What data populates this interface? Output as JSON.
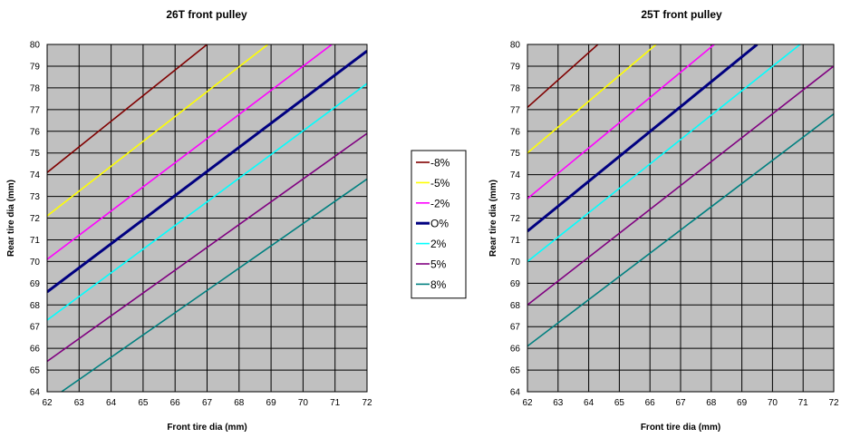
{
  "chart_data": [
    {
      "type": "line",
      "title": "26T front pulley",
      "xlabel": "Front tire dia (mm)",
      "ylabel": "Rear tire dia (mm)",
      "xlim": [
        62,
        72
      ],
      "ylim": [
        64,
        80
      ],
      "xticks": [
        "62",
        "63",
        "64",
        "65",
        "66",
        "67",
        "68",
        "69",
        "70",
        "71",
        "72"
      ],
      "yticks": [
        "64",
        "65",
        "66",
        "67",
        "68",
        "69",
        "70",
        "71",
        "72",
        "73",
        "74",
        "75",
        "76",
        "77",
        "78",
        "79",
        "80"
      ],
      "grid": true,
      "plot_background": "#c0c0c0",
      "series": [
        {
          "name": "-8%",
          "color": "#800000",
          "points": [
            [
              62,
              74.1
            ],
            [
              67,
              80.0
            ]
          ]
        },
        {
          "name": "-5%",
          "color": "#ffff00",
          "points": [
            [
              62,
              72.1
            ],
            [
              68.9,
              80.0
            ]
          ]
        },
        {
          "name": "-2%",
          "color": "#ff00ff",
          "points": [
            [
              62,
              70.1
            ],
            [
              70.9,
              80.0
            ]
          ]
        },
        {
          "name": "O%",
          "color": "#000080",
          "points": [
            [
              62,
              68.6
            ],
            [
              72,
              79.7
            ]
          ],
          "bold": true
        },
        {
          "name": "2%",
          "color": "#00ffff",
          "points": [
            [
              62,
              67.3
            ],
            [
              72,
              78.2
            ]
          ]
        },
        {
          "name": "5%",
          "color": "#800080",
          "points": [
            [
              62,
              65.4
            ],
            [
              72,
              75.9
            ]
          ]
        },
        {
          "name": "8%",
          "color": "#008080",
          "points": [
            [
              62.45,
              64.0
            ],
            [
              72,
              73.8
            ]
          ]
        }
      ]
    },
    {
      "type": "line",
      "title": "25T front pulley",
      "xlabel": "Front tire dia (mm)",
      "ylabel": "Rear tire dia (mm)",
      "xlim": [
        62,
        72
      ],
      "ylim": [
        64,
        80
      ],
      "xticks": [
        "62",
        "63",
        "64",
        "65",
        "66",
        "67",
        "68",
        "69",
        "70",
        "71",
        "72"
      ],
      "yticks": [
        "64",
        "65",
        "66",
        "67",
        "68",
        "69",
        "70",
        "71",
        "72",
        "73",
        "74",
        "75",
        "76",
        "77",
        "78",
        "79",
        "80"
      ],
      "grid": true,
      "plot_background": "#c0c0c0",
      "series": [
        {
          "name": "-8%",
          "color": "#800000",
          "points": [
            [
              62,
              77.1
            ],
            [
              64.3,
              80.0
            ]
          ]
        },
        {
          "name": "-5%",
          "color": "#ffff00",
          "points": [
            [
              62,
              75.0
            ],
            [
              66.2,
              80.0
            ]
          ]
        },
        {
          "name": "-2%",
          "color": "#ff00ff",
          "points": [
            [
              62,
              72.9
            ],
            [
              68.1,
              80.0
            ]
          ]
        },
        {
          "name": "O%",
          "color": "#000080",
          "points": [
            [
              62,
              71.4
            ],
            [
              69.5,
              80.0
            ]
          ],
          "bold": true
        },
        {
          "name": "2%",
          "color": "#00ffff",
          "points": [
            [
              62,
              70.0
            ],
            [
              70.9,
              80.0
            ]
          ]
        },
        {
          "name": "5%",
          "color": "#800080",
          "points": [
            [
              62,
              68.0
            ],
            [
              72,
              79.0
            ]
          ]
        },
        {
          "name": "8%",
          "color": "#008080",
          "points": [
            [
              62,
              66.1
            ],
            [
              72,
              76.8
            ]
          ]
        }
      ]
    }
  ],
  "legend": {
    "placement": "center",
    "items": [
      {
        "label": "-8%",
        "color": "#800000"
      },
      {
        "label": "-5%",
        "color": "#ffff00"
      },
      {
        "label": "-2%",
        "color": "#ff00ff"
      },
      {
        "label": "O%",
        "color": "#000080",
        "bold": true
      },
      {
        "label": "2%",
        "color": "#00ffff"
      },
      {
        "label": "5%",
        "color": "#800080"
      },
      {
        "label": "8%",
        "color": "#008080"
      }
    ]
  }
}
